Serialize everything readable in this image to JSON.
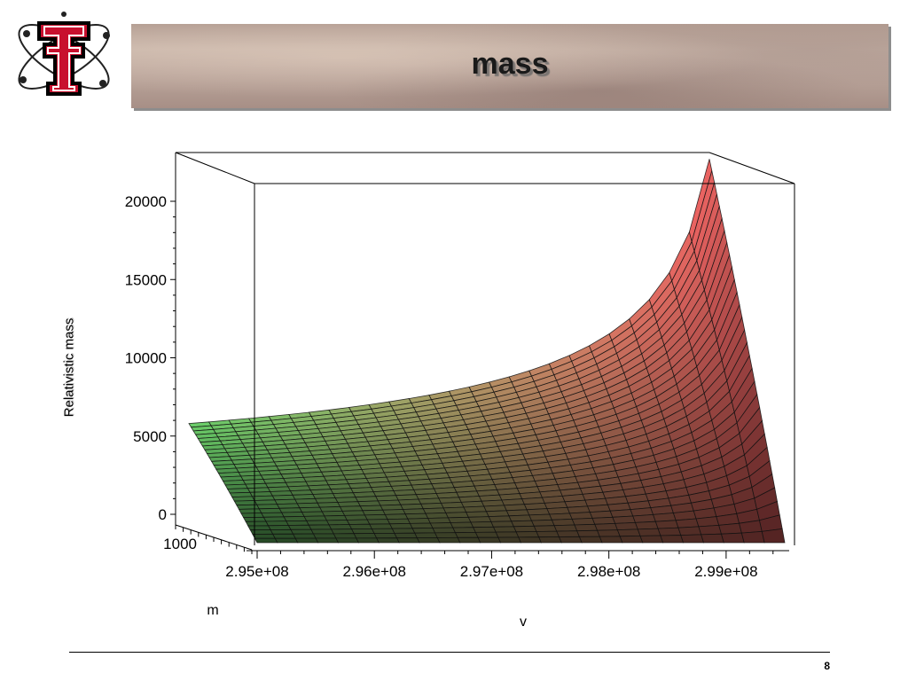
{
  "slide": {
    "title": "mass",
    "page_number": "8"
  },
  "chart_data": {
    "type": "surface",
    "title": "",
    "xlabel": "v",
    "ylabel": "m",
    "zlabel": "Relativistic mass",
    "x_ticks": [
      "2.95e+08",
      "2.96e+08",
      "2.97e+08",
      "2.98e+08",
      "2.99e+08"
    ],
    "y_ticks": [
      "1000"
    ],
    "z_ticks": [
      "0",
      "5000",
      "10000",
      "15000",
      "20000"
    ],
    "xlim": [
      295000000,
      299500000
    ],
    "zlim": [
      0,
      23000
    ],
    "colors": {
      "low_v": "#6ad06a",
      "high_v": "#ee6262",
      "mesh": "#111111"
    },
    "surface": {
      "v": [
        295000000,
        299500000
      ],
      "m_max": 1000,
      "z_max_at_low_v": 5800,
      "z_max_at_high_v": 22700
    }
  }
}
